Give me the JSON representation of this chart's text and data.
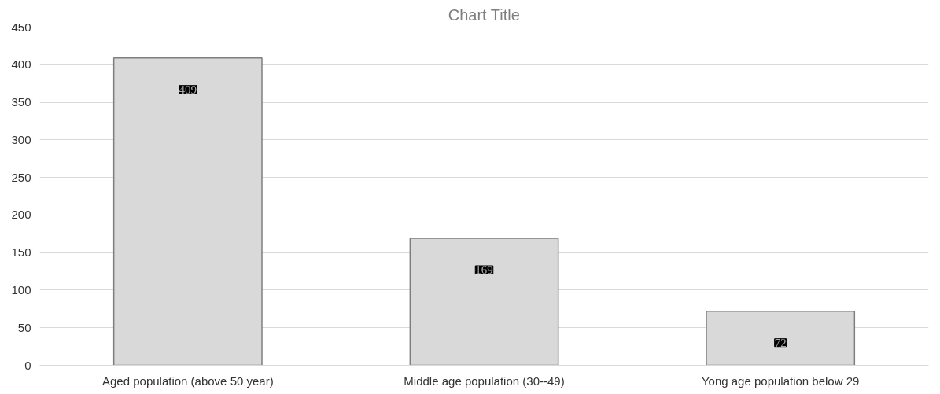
{
  "chart_data": {
    "type": "bar",
    "title": "Chart Title",
    "categories": [
      "Aged population (above 50 year)",
      "Middle age population (30--49)",
      "Yong age population below 29"
    ],
    "values": [
      409,
      169,
      72
    ],
    "color": "#d9d9d9",
    "ylim": [
      0,
      450
    ],
    "yticks": [
      0,
      50,
      100,
      150,
      200,
      250,
      300,
      350,
      400,
      450
    ],
    "grid": "y",
    "data_labels": true
  }
}
